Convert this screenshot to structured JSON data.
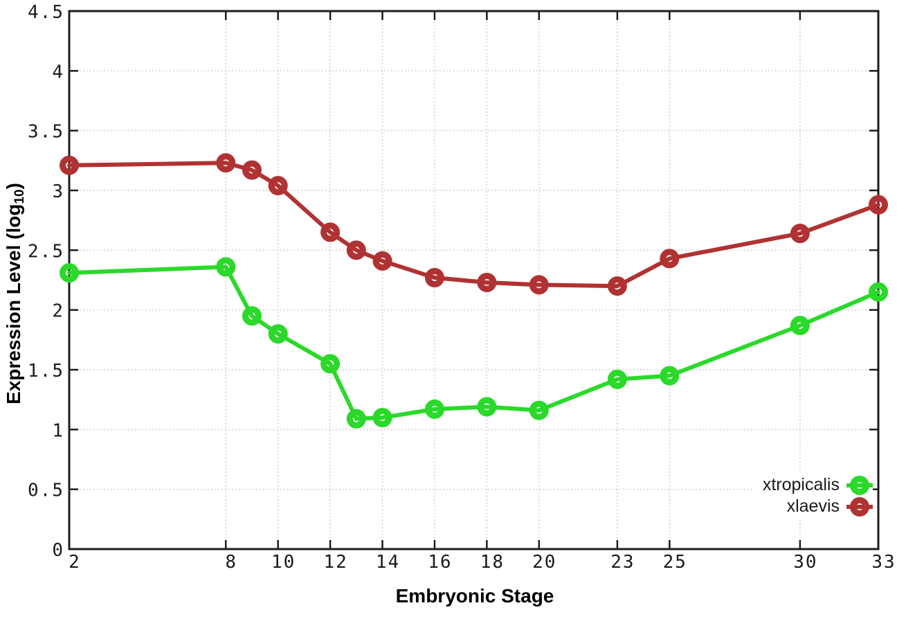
{
  "figure": {
    "background": "#ffffff"
  },
  "chart_data": {
    "type": "line",
    "title": "",
    "xlabel": "Embryonic Stage",
    "ylabel": "Expression Level (log10)",
    "ylabel_parts": {
      "main": "Expression Level (log",
      "sub": "10",
      "end": ")"
    },
    "x": [
      2,
      8,
      9,
      10,
      12,
      13,
      14,
      16,
      18,
      20,
      23,
      25,
      30,
      33
    ],
    "series": [
      {
        "name": "xtropicalis",
        "color": "#2bd92b",
        "values": [
          2.31,
          2.36,
          1.95,
          1.8,
          1.55,
          1.09,
          1.1,
          1.17,
          1.19,
          1.16,
          1.42,
          1.45,
          1.87,
          2.15
        ]
      },
      {
        "name": "xlaevis",
        "color": "#b03232",
        "values": [
          3.21,
          3.23,
          3.17,
          3.04,
          2.65,
          2.5,
          2.41,
          2.27,
          2.23,
          2.21,
          2.2,
          2.43,
          2.64,
          2.88
        ]
      }
    ],
    "xlim": [
      2,
      33
    ],
    "ylim": [
      0,
      4.5
    ],
    "x_ticks": [
      2,
      8,
      10,
      12,
      14,
      16,
      18,
      20,
      23,
      25,
      30,
      33
    ],
    "y_ticks": [
      0,
      0.5,
      1,
      1.5,
      2,
      2.5,
      3,
      3.5,
      4,
      4.5
    ],
    "grid": true,
    "legend_position": "bottom-right",
    "marker": "open-circle"
  },
  "styles": {
    "border_color": "#1c1c1c",
    "grid_color": "#c2c2c2",
    "tick_text_color": "#1a1a1a",
    "title_text_color": "#000000"
  }
}
